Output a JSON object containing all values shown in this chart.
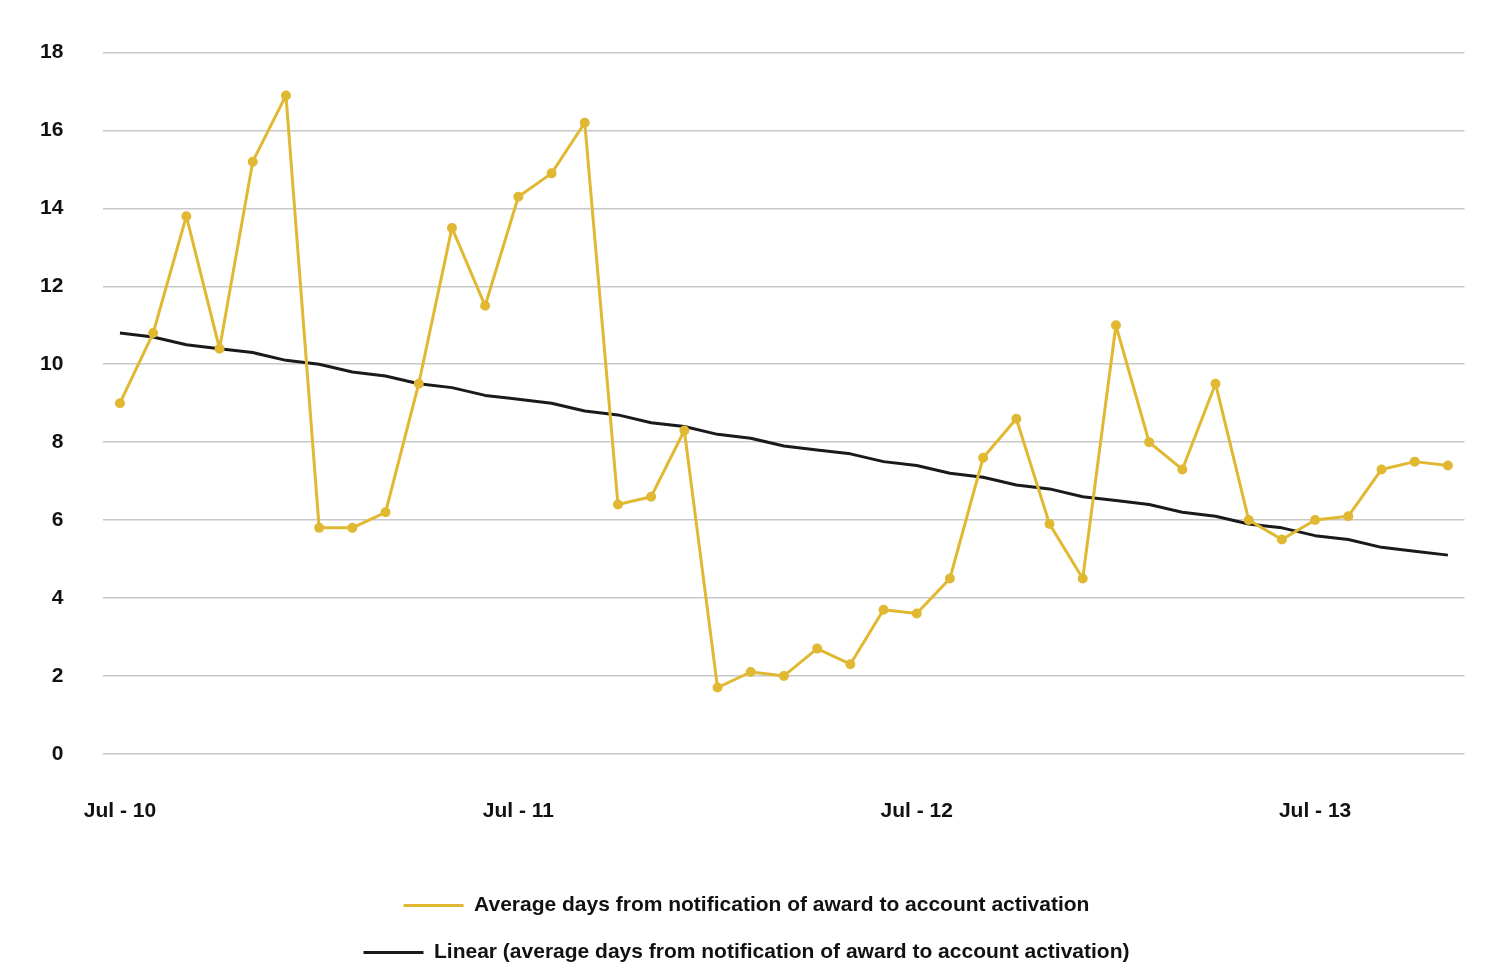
{
  "chart_data": {
    "type": "line",
    "categories": [
      "Jul - 10",
      null,
      null,
      null,
      null,
      null,
      null,
      null,
      null,
      null,
      null,
      null,
      "Jul - 11",
      null,
      null,
      null,
      null,
      null,
      null,
      null,
      null,
      null,
      null,
      null,
      "Jul - 12",
      null,
      null,
      null,
      null,
      null,
      null,
      null,
      null,
      null,
      null,
      null,
      "Jul - 13",
      null,
      null,
      null,
      null
    ],
    "series": [
      {
        "name": "Average days from notification of award to account activation",
        "color": "#e0b832",
        "marker": "circle",
        "values": [
          9.0,
          10.8,
          13.8,
          10.4,
          15.2,
          16.9,
          5.8,
          5.8,
          6.2,
          9.5,
          13.5,
          11.5,
          14.3,
          14.9,
          16.2,
          6.4,
          6.6,
          8.3,
          1.7,
          2.1,
          2.0,
          2.7,
          2.3,
          3.7,
          3.6,
          4.5,
          7.6,
          8.6,
          5.9,
          4.5,
          11.0,
          8.0,
          7.3,
          9.5,
          6.0,
          5.5,
          6.0,
          6.1,
          7.3,
          7.5,
          7.4
        ]
      },
      {
        "name": "Linear (average days from notification of award to account activation)",
        "color": "#1a1a1a",
        "marker": "none",
        "values": [
          10.8,
          10.7,
          10.5,
          10.4,
          10.3,
          10.1,
          10.0,
          9.8,
          9.7,
          9.5,
          9.4,
          9.2,
          9.1,
          9.0,
          8.8,
          8.7,
          8.5,
          8.4,
          8.2,
          8.1,
          7.9,
          7.8,
          7.7,
          7.5,
          7.4,
          7.2,
          7.1,
          6.9,
          6.8,
          6.6,
          6.5,
          6.4,
          6.2,
          6.1,
          5.9,
          5.8,
          5.6,
          5.5,
          5.3,
          5.2,
          5.1
        ]
      }
    ],
    "ylim": [
      0,
      18
    ],
    "yticks": [
      0,
      2,
      4,
      6,
      8,
      10,
      12,
      14,
      16,
      18
    ],
    "grid": "y",
    "legend": "bottom",
    "line_style": "solid"
  }
}
